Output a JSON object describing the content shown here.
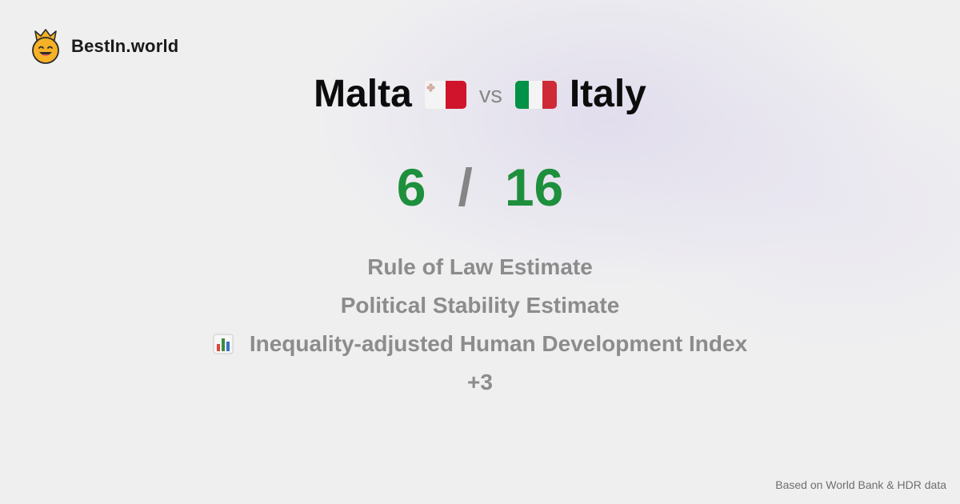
{
  "brand": {
    "name": "BestIn.world",
    "logo_icon": "crowned-smiley-icon"
  },
  "comparison": {
    "left_country": "Malta",
    "left_flag_icon": "malta-flag-icon",
    "vs_label": "vs",
    "right_country": "Italy",
    "right_flag_icon": "italy-flag-icon"
  },
  "score": {
    "left": "6",
    "separator": "/",
    "right": "16"
  },
  "metrics": [
    {
      "label": "Rule of Law Estimate",
      "icon": ""
    },
    {
      "label": "Political Stability Estimate",
      "icon": ""
    },
    {
      "label": "Inequality-adjusted Human Development Index",
      "icon": "bar-chart-icon"
    },
    {
      "label": "+3",
      "icon": ""
    }
  ],
  "footer": {
    "note": "Based on World Bank & HDR data"
  },
  "colors": {
    "score_green": "#1e8f3c",
    "muted_gray": "#8c8c8c",
    "malta_red": "#cf142b",
    "italy_green": "#009246",
    "italy_red": "#ce2b37"
  }
}
